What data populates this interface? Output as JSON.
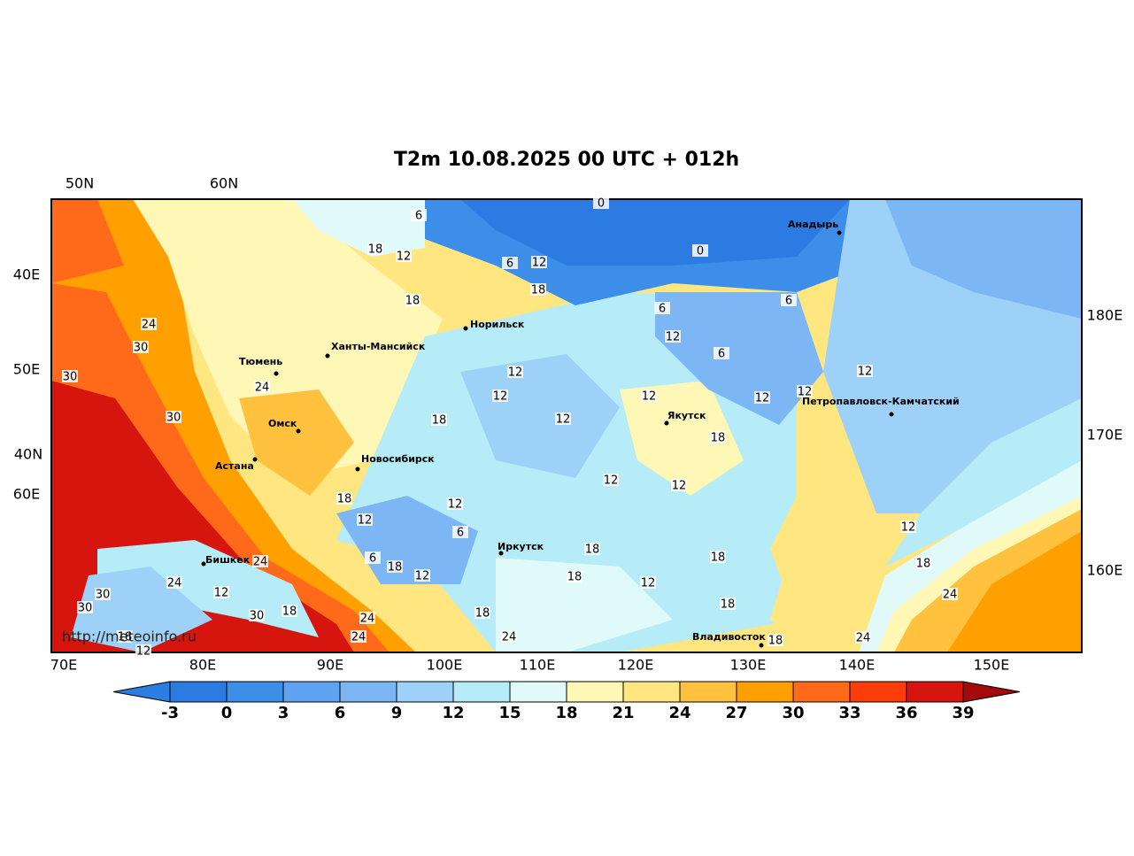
{
  "title": "T2m 10.08.2025 00 UTC + 012h",
  "axis_labels": {
    "top": [
      "50N",
      "60N"
    ],
    "left": [
      "40E",
      "50E",
      "40N",
      "60E"
    ],
    "right": [
      "180E",
      "170E",
      "160E"
    ],
    "bottom": [
      "70E",
      "80E",
      "90E",
      "100E",
      "110E",
      "120E",
      "130E",
      "140E",
      "150E"
    ]
  },
  "cities": [
    "Анадырь",
    "Норильск",
    "Ханты-Мансийск",
    "Тюмень",
    "Омск",
    "Астана",
    "Новосибирск",
    "Якутск",
    "Петропавловск-Камчатский",
    "Иркутск",
    "Бишкек",
    "Владивосток"
  ],
  "contour_labels": [
    6,
    0,
    18,
    12,
    6,
    12,
    0,
    18,
    18,
    6,
    6,
    12,
    24,
    30,
    6,
    12,
    12,
    30,
    24,
    12,
    12,
    12,
    12,
    30,
    18,
    12,
    18,
    12,
    12,
    18,
    12,
    12,
    6,
    12,
    6,
    18,
    24,
    12,
    18,
    18,
    18,
    12,
    18,
    24,
    12,
    30,
    24,
    30,
    30,
    18,
    18,
    18,
    24,
    24,
    24,
    24,
    18,
    18,
    12
  ],
  "watermark": "http://meteoinfo.ru",
  "colorbar": {
    "ticks": [
      -3,
      0,
      3,
      6,
      9,
      12,
      15,
      18,
      21,
      24,
      27,
      30,
      33,
      36,
      39
    ],
    "colors": [
      "#2a7de1",
      "#2b7be3",
      "#3d8ee8",
      "#5fa3f0",
      "#7cb6f5",
      "#9dd1f8",
      "#b5ecf7",
      "#e0fafa",
      "#fff7b5",
      "#ffe680",
      "#ffc13e",
      "#ffa000",
      "#ff6a1a",
      "#ff3d0a",
      "#d7150f",
      "#a50a0a"
    ]
  }
}
